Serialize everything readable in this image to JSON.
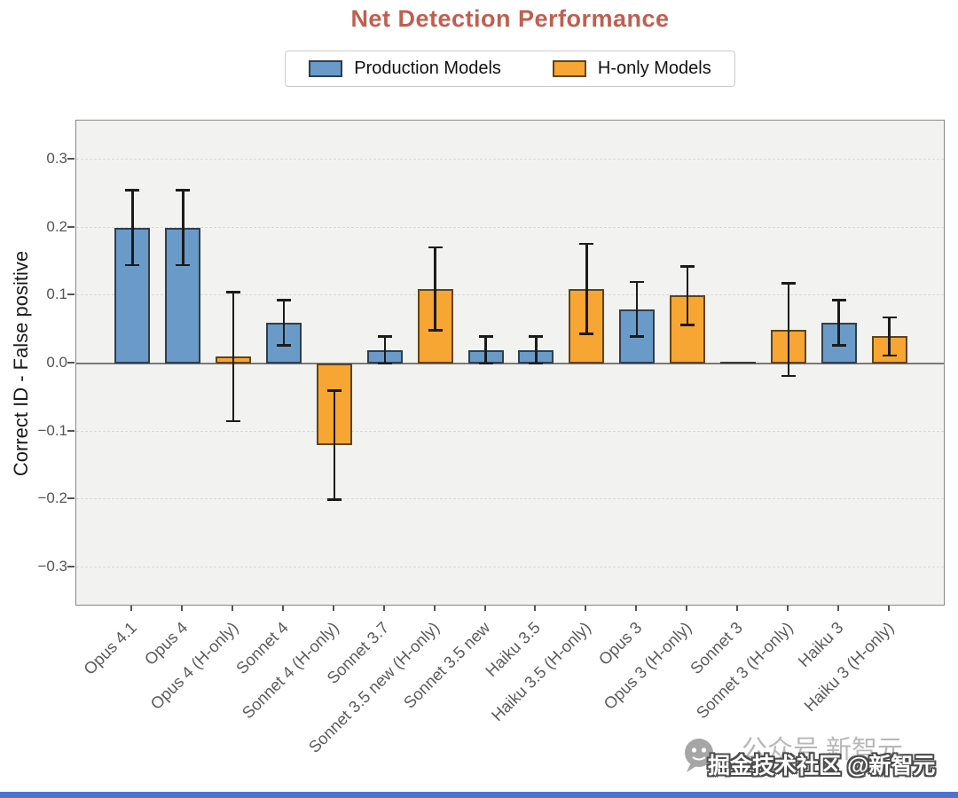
{
  "legend": {
    "items": [
      {
        "label": "Production Models",
        "group": "production"
      },
      {
        "label": "H-only Models",
        "group": "honly"
      }
    ]
  },
  "axes": {
    "ytick_labels": [
      "0.3",
      "0.2",
      "0.1",
      "0.0",
      "−0.1",
      "−0.2",
      "−0.3"
    ]
  },
  "watermark": {
    "icon": "wechat-icon",
    "back_text": "公众号 新智元",
    "front_text": "掘金技术社区 @新智元"
  },
  "colors": {
    "title": "#c05f50",
    "plot_bg": "#f2f2f0",
    "grid": "#d9d9d9",
    "spine": "#888888",
    "zero": "#7a7a7a",
    "err": "#1b1b1b",
    "strip": "#4b74d2",
    "production": "#6a9bc8",
    "production_edge": "#2f3e4e",
    "honly": "#f7a633",
    "honly_edge": "#5f4516"
  },
  "chart_data": {
    "type": "bar",
    "title": "Net Detection Performance",
    "xlabel": "",
    "ylabel": "Correct ID - False positive",
    "ylim": [
      -0.36,
      0.36
    ],
    "yticks": [
      0.3,
      0.2,
      0.1,
      0.0,
      -0.1,
      -0.2,
      -0.3
    ],
    "grid": "horizontal-dashed",
    "legend_position": "top-center",
    "series_legend": [
      "Production Models",
      "H-only Models"
    ],
    "bars": [
      {
        "label": "Opus 4.1",
        "group": "production",
        "value": 0.2,
        "err": 0.055
      },
      {
        "label": "Opus 4",
        "group": "production",
        "value": 0.2,
        "err": 0.055
      },
      {
        "label": "Opus 4 (H-only)",
        "group": "honly",
        "value": 0.01,
        "err": 0.095
      },
      {
        "label": "Sonnet 4",
        "group": "production",
        "value": 0.06,
        "err": 0.033
      },
      {
        "label": "Sonnet 4 (H-only)",
        "group": "honly",
        "value": -0.12,
        "err": 0.08
      },
      {
        "label": "Sonnet 3.7",
        "group": "production",
        "value": 0.02,
        "err": 0.02
      },
      {
        "label": "Sonnet 3.5 new (H-only)",
        "group": "honly",
        "value": 0.11,
        "err": 0.061
      },
      {
        "label": "Sonnet 3.5 new",
        "group": "production",
        "value": 0.02,
        "err": 0.02
      },
      {
        "label": "Haiku 3.5",
        "group": "production",
        "value": 0.02,
        "err": 0.02
      },
      {
        "label": "Haiku 3.5 (H-only)",
        "group": "honly",
        "value": 0.11,
        "err": 0.066
      },
      {
        "label": "Opus 3",
        "group": "production",
        "value": 0.08,
        "err": 0.04
      },
      {
        "label": "Opus 3 (H-only)",
        "group": "honly",
        "value": 0.1,
        "err": 0.043
      },
      {
        "label": "Sonnet 3",
        "group": "production",
        "value": 0.0,
        "err": null
      },
      {
        "label": "Sonnet 3 (H-only)",
        "group": "honly",
        "value": 0.05,
        "err": 0.068
      },
      {
        "label": "Haiku 3",
        "group": "production",
        "value": 0.06,
        "err": 0.033
      },
      {
        "label": "Haiku 3 (H-only)",
        "group": "honly",
        "value": 0.04,
        "err": 0.028
      }
    ]
  }
}
